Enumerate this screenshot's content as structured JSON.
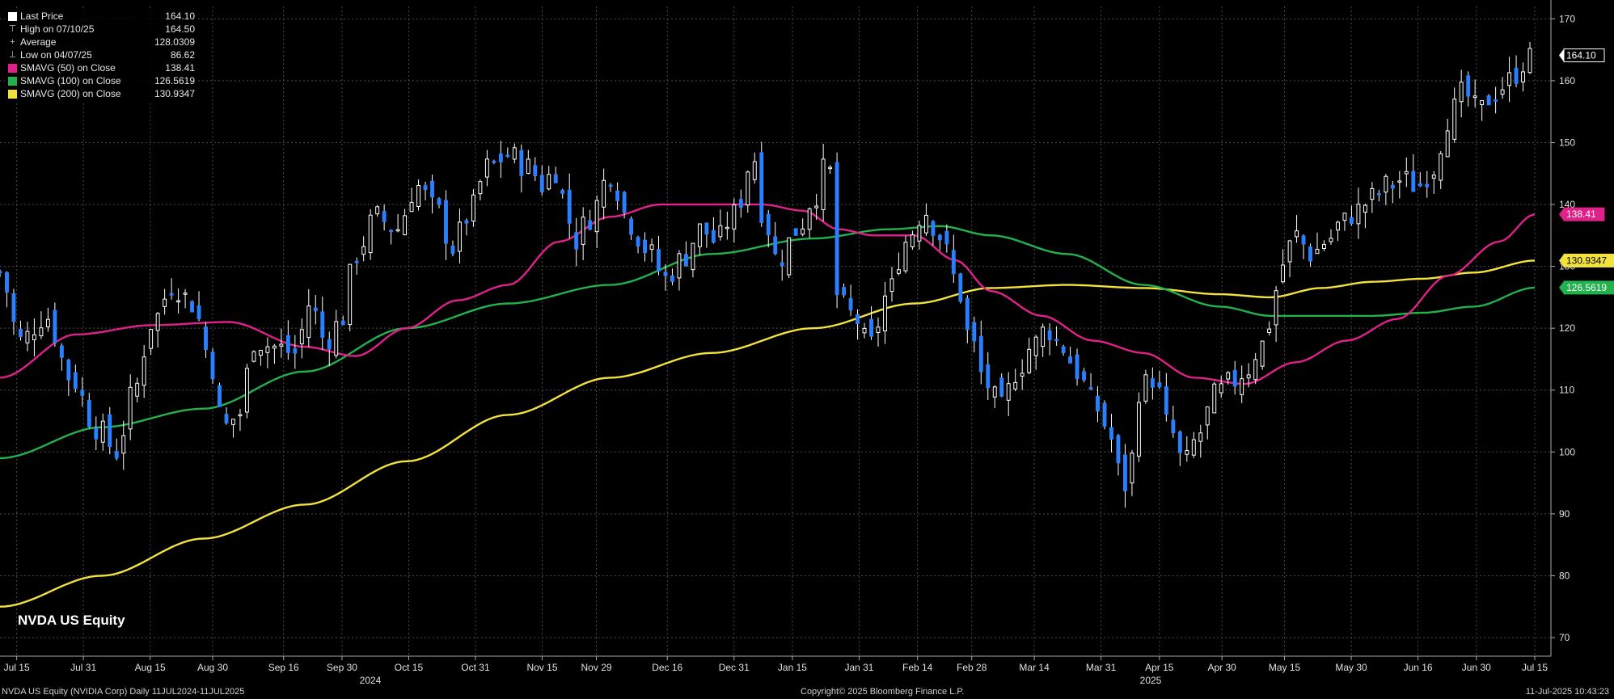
{
  "legend": {
    "items": [
      {
        "label": "Last Price",
        "value": "164.10",
        "swatch": "#ffffff",
        "glyph": ""
      },
      {
        "label": "High on 07/10/25",
        "value": "164.50",
        "swatch": "",
        "glyph": "⊤"
      },
      {
        "label": "Average",
        "value": "128.0309",
        "swatch": "",
        "glyph": "+"
      },
      {
        "label": "Low on 04/07/25",
        "value": "86.62",
        "swatch": "",
        "glyph": "⊥"
      },
      {
        "label": "SMAVG (50)  on Close",
        "value": "138.41",
        "swatch": "#e0218a",
        "glyph": ""
      },
      {
        "label": "SMAVG (100)  on Close",
        "value": "126.5619",
        "swatch": "#23b14d",
        "glyph": ""
      },
      {
        "label": "SMAVG (200)  on Close",
        "value": "130.9347",
        "swatch": "#f2e23d",
        "glyph": ""
      }
    ]
  },
  "equity_title": "NVDA US Equity",
  "footer": {
    "left": "NVDA US Equity (NVIDIA Corp)  Daily 11JUL2024-11JUL2025",
    "center": "Copyright© 2025 Bloomberg Finance L.P.",
    "right": "11-Jul-2025 10:43:23"
  },
  "chart_data": {
    "type": "candlestick",
    "title": "NVDA US Equity",
    "y_ticks": [
      70,
      80,
      90,
      100,
      110,
      120,
      130,
      140,
      150,
      160,
      170
    ],
    "ylim": [
      67,
      172
    ],
    "x_ticks": [
      "Jul 15",
      "Jul 31",
      "Aug 15",
      "Aug 30",
      "Sep 16",
      "Sep 30",
      "Oct 15",
      "Oct 31",
      "Nov 15",
      "Nov 29",
      "Dec 16",
      "Dec 31",
      "Jan 15",
      "Jan 31",
      "Feb 14",
      "Feb 28",
      "Mar 14",
      "Mar 31",
      "Apr 15",
      "Apr 30",
      "May 15",
      "May 30",
      "Jun 16",
      "Jun 30",
      "Jul 15"
    ],
    "year_labels": [
      "2024",
      "2025"
    ],
    "colors": {
      "up": "#ffffff",
      "down": "#2a7fff",
      "sma50": "#e0218a",
      "sma100": "#23b14d",
      "sma200": "#f2e23d",
      "grid": "#4a4a4a"
    },
    "close_anchors": [
      {
        "d": 0,
        "c": 129
      },
      {
        "d": 4,
        "c": 118
      },
      {
        "d": 9,
        "c": 122
      },
      {
        "d": 14,
        "c": 112
      },
      {
        "d": 19,
        "c": 104
      },
      {
        "d": 23,
        "c": 100
      },
      {
        "d": 26,
        "c": 109
      },
      {
        "d": 30,
        "c": 121
      },
      {
        "d": 34,
        "c": 127
      },
      {
        "d": 38,
        "c": 124
      },
      {
        "d": 41,
        "c": 116
      },
      {
        "d": 44,
        "c": 104
      },
      {
        "d": 47,
        "c": 106
      },
      {
        "d": 50,
        "c": 118
      },
      {
        "d": 54,
        "c": 117
      },
      {
        "d": 58,
        "c": 116
      },
      {
        "d": 61,
        "c": 124
      },
      {
        "d": 64,
        "c": 118
      },
      {
        "d": 67,
        "c": 121
      },
      {
        "d": 70,
        "c": 132
      },
      {
        "d": 74,
        "c": 138
      },
      {
        "d": 78,
        "c": 136
      },
      {
        "d": 82,
        "c": 143
      },
      {
        "d": 86,
        "c": 139
      },
      {
        "d": 89,
        "c": 133
      },
      {
        "d": 92,
        "c": 138
      },
      {
        "d": 96,
        "c": 146
      },
      {
        "d": 100,
        "c": 148
      },
      {
        "d": 104,
        "c": 146
      },
      {
        "d": 107,
        "c": 143
      },
      {
        "d": 109,
        "c": 146
      },
      {
        "d": 111,
        "c": 141
      },
      {
        "d": 113,
        "c": 134
      },
      {
        "d": 116,
        "c": 138
      },
      {
        "d": 120,
        "c": 145
      },
      {
        "d": 124,
        "c": 137
      },
      {
        "d": 127,
        "c": 133
      },
      {
        "d": 131,
        "c": 128
      },
      {
        "d": 134,
        "c": 131
      },
      {
        "d": 138,
        "c": 136
      },
      {
        "d": 141,
        "c": 134
      },
      {
        "d": 144,
        "c": 138
      },
      {
        "d": 146,
        "c": 141
      },
      {
        "d": 148,
        "c": 149
      },
      {
        "d": 150,
        "c": 139
      },
      {
        "d": 153,
        "c": 131
      },
      {
        "d": 157,
        "c": 136
      },
      {
        "d": 160,
        "c": 141
      },
      {
        "d": 163,
        "c": 147
      },
      {
        "d": 165,
        "c": 124
      },
      {
        "d": 168,
        "c": 122
      },
      {
        "d": 171,
        "c": 117
      },
      {
        "d": 175,
        "c": 126
      },
      {
        "d": 178,
        "c": 134
      },
      {
        "d": 182,
        "c": 139
      },
      {
        "d": 185,
        "c": 135
      },
      {
        "d": 188,
        "c": 128
      },
      {
        "d": 191,
        "c": 118
      },
      {
        "d": 194,
        "c": 111
      },
      {
        "d": 197,
        "c": 107
      },
      {
        "d": 200,
        "c": 113
      },
      {
        "d": 203,
        "c": 117
      },
      {
        "d": 206,
        "c": 120
      },
      {
        "d": 209,
        "c": 117
      },
      {
        "d": 212,
        "c": 113
      },
      {
        "d": 215,
        "c": 108
      },
      {
        "d": 218,
        "c": 104
      },
      {
        "d": 220,
        "c": 97
      },
      {
        "d": 222,
        "c": 94
      },
      {
        "d": 224,
        "c": 110
      },
      {
        "d": 227,
        "c": 112
      },
      {
        "d": 230,
        "c": 104
      },
      {
        "d": 233,
        "c": 98
      },
      {
        "d": 236,
        "c": 103
      },
      {
        "d": 239,
        "c": 109
      },
      {
        "d": 242,
        "c": 111
      },
      {
        "d": 245,
        "c": 113
      },
      {
        "d": 248,
        "c": 117
      },
      {
        "d": 250,
        "c": 121
      },
      {
        "d": 252,
        "c": 130
      },
      {
        "d": 255,
        "c": 135
      },
      {
        "d": 258,
        "c": 132
      },
      {
        "d": 261,
        "c": 134
      },
      {
        "d": 264,
        "c": 137
      },
      {
        "d": 267,
        "c": 139
      },
      {
        "d": 270,
        "c": 141
      },
      {
        "d": 273,
        "c": 143
      },
      {
        "d": 276,
        "c": 144
      },
      {
        "d": 279,
        "c": 143
      },
      {
        "d": 282,
        "c": 146
      },
      {
        "d": 285,
        "c": 154
      },
      {
        "d": 288,
        "c": 158
      },
      {
        "d": 291,
        "c": 155
      },
      {
        "d": 294,
        "c": 158
      },
      {
        "d": 297,
        "c": 160
      },
      {
        "d": 300,
        "c": 163
      },
      {
        "d": 302,
        "c": 164.1
      }
    ],
    "sma50_anchors": [
      {
        "d": 0,
        "v": 112
      },
      {
        "d": 15,
        "v": 119
      },
      {
        "d": 30,
        "v": 120.5
      },
      {
        "d": 45,
        "v": 121
      },
      {
        "d": 60,
        "v": 117
      },
      {
        "d": 70,
        "v": 115.5
      },
      {
        "d": 80,
        "v": 120
      },
      {
        "d": 90,
        "v": 124.5
      },
      {
        "d": 100,
        "v": 127
      },
      {
        "d": 110,
        "v": 134
      },
      {
        "d": 120,
        "v": 138
      },
      {
        "d": 130,
        "v": 140
      },
      {
        "d": 140,
        "v": 140
      },
      {
        "d": 150,
        "v": 140
      },
      {
        "d": 158,
        "v": 139
      },
      {
        "d": 165,
        "v": 136
      },
      {
        "d": 172,
        "v": 135
      },
      {
        "d": 180,
        "v": 135
      },
      {
        "d": 188,
        "v": 131
      },
      {
        "d": 195,
        "v": 126
      },
      {
        "d": 205,
        "v": 122
      },
      {
        "d": 215,
        "v": 118
      },
      {
        "d": 225,
        "v": 116
      },
      {
        "d": 235,
        "v": 112
      },
      {
        "d": 245,
        "v": 111
      },
      {
        "d": 255,
        "v": 114.5
      },
      {
        "d": 265,
        "v": 118
      },
      {
        "d": 275,
        "v": 121.5
      },
      {
        "d": 285,
        "v": 128.5
      },
      {
        "d": 295,
        "v": 134
      },
      {
        "d": 302,
        "v": 138.41
      }
    ],
    "sma100_anchors": [
      {
        "d": 0,
        "v": 99
      },
      {
        "d": 20,
        "v": 104
      },
      {
        "d": 40,
        "v": 107
      },
      {
        "d": 60,
        "v": 113
      },
      {
        "d": 80,
        "v": 120
      },
      {
        "d": 100,
        "v": 124
      },
      {
        "d": 120,
        "v": 127
      },
      {
        "d": 140,
        "v": 132
      },
      {
        "d": 160,
        "v": 134.5
      },
      {
        "d": 175,
        "v": 136
      },
      {
        "d": 185,
        "v": 136.5
      },
      {
        "d": 195,
        "v": 135
      },
      {
        "d": 210,
        "v": 132
      },
      {
        "d": 225,
        "v": 127
      },
      {
        "d": 240,
        "v": 123.5
      },
      {
        "d": 250,
        "v": 122
      },
      {
        "d": 260,
        "v": 122
      },
      {
        "d": 270,
        "v": 122
      },
      {
        "d": 280,
        "v": 122.5
      },
      {
        "d": 290,
        "v": 123.5
      },
      {
        "d": 302,
        "v": 126.5619
      }
    ],
    "sma200_anchors": [
      {
        "d": 0,
        "v": 75
      },
      {
        "d": 20,
        "v": 80
      },
      {
        "d": 40,
        "v": 86
      },
      {
        "d": 60,
        "v": 91.5
      },
      {
        "d": 80,
        "v": 98.5
      },
      {
        "d": 100,
        "v": 106
      },
      {
        "d": 120,
        "v": 112
      },
      {
        "d": 140,
        "v": 116
      },
      {
        "d": 160,
        "v": 120
      },
      {
        "d": 180,
        "v": 124
      },
      {
        "d": 195,
        "v": 126.5
      },
      {
        "d": 210,
        "v": 127
      },
      {
        "d": 225,
        "v": 126.5
      },
      {
        "d": 240,
        "v": 125.5
      },
      {
        "d": 250,
        "v": 125
      },
      {
        "d": 260,
        "v": 126.5
      },
      {
        "d": 270,
        "v": 127.5
      },
      {
        "d": 280,
        "v": 128
      },
      {
        "d": 290,
        "v": 129
      },
      {
        "d": 302,
        "v": 130.9347
      }
    ],
    "last_labels": [
      {
        "text": "164.10",
        "value": 164.1,
        "bg": "#000000",
        "fg": "#ffffff",
        "border": "#ffffff"
      },
      {
        "text": "138.41",
        "value": 138.41,
        "bg": "#e0218a",
        "fg": "#ffffff",
        "border": "#e0218a"
      },
      {
        "text": "130.9347",
        "value": 130.9347,
        "bg": "#f2e23d",
        "fg": "#000000",
        "border": "#f2e23d"
      },
      {
        "text": "126.5619",
        "value": 126.5619,
        "bg": "#23b14d",
        "fg": "#ffffff",
        "border": "#23b14d"
      }
    ]
  }
}
